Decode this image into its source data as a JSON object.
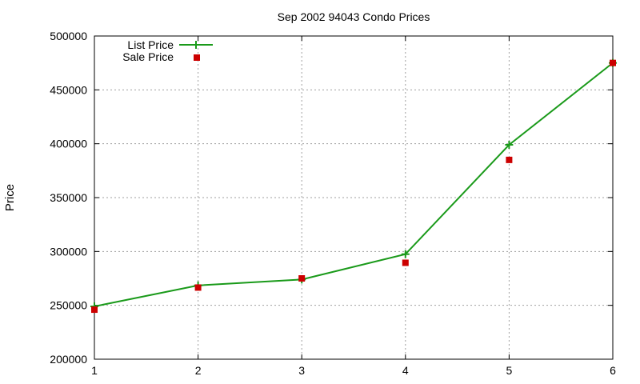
{
  "chart_data": {
    "type": "line",
    "title": "Sep 2002 94043 Condo Prices",
    "xlabel": "",
    "ylabel": "Price",
    "xlim": [
      1,
      6
    ],
    "ylim": [
      200000,
      500000
    ],
    "xticks": [
      1,
      2,
      3,
      4,
      5,
      6
    ],
    "yticks": [
      200000,
      250000,
      300000,
      350000,
      400000,
      450000,
      500000
    ],
    "grid": true,
    "legend_position": "top-left",
    "x": [
      1,
      2,
      3,
      4,
      5,
      6
    ],
    "series": [
      {
        "name": "List Price",
        "style": "linespoints",
        "marker": "plus",
        "color": "#1a9a1a",
        "values": [
          249000,
          268500,
          274000,
          297500,
          399000,
          475000
        ]
      },
      {
        "name": "Sale Price",
        "style": "points",
        "marker": "square",
        "color": "#cc0000",
        "values": [
          246000,
          266500,
          275000,
          289500,
          385000,
          475000
        ]
      }
    ]
  }
}
